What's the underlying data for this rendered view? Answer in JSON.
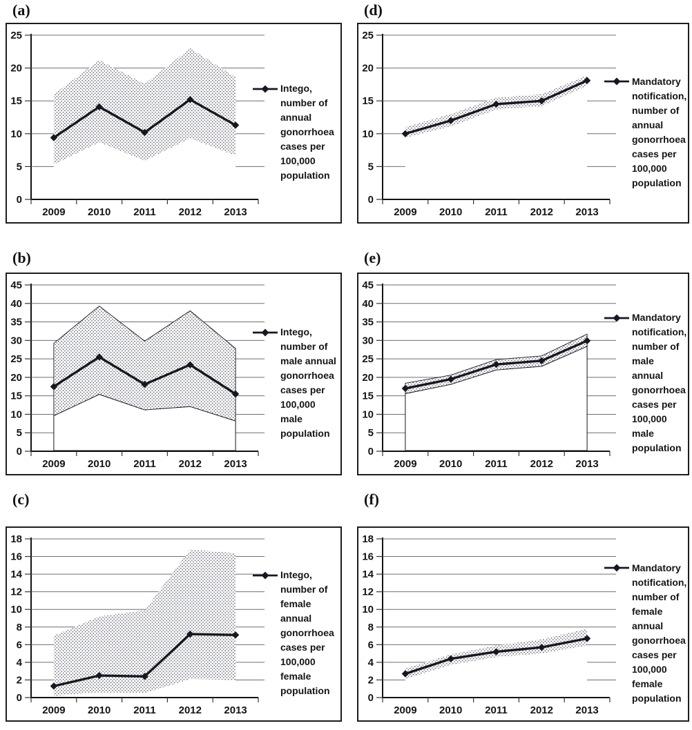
{
  "figure": {
    "description": "Six line charts (a-f) comparing Intego registration network vs Mandatory notification gonorrhoea rates, Belgium 2009-2013, with confidence bands",
    "accent_color": "#171721",
    "grid_color": "#6e6e6e"
  },
  "chart_data": [
    {
      "type": "line",
      "panel_label": "(a)",
      "categories": [
        "2009",
        "2010",
        "2011",
        "2012",
        "2013"
      ],
      "series": [
        {
          "name": "Intego, number of annual gonorrhoea cases per 100,000 population",
          "values": [
            9.4,
            14.1,
            10.2,
            15.2,
            11.3
          ]
        }
      ],
      "band": {
        "upper": [
          16.0,
          21.2,
          17.6,
          23.0,
          18.6
        ],
        "lower": [
          5.3,
          8.7,
          5.9,
          9.3,
          6.7
        ]
      },
      "ylim": [
        0,
        25
      ],
      "ytick": 5,
      "legend_lines": [
        "Intego,",
        "number of",
        "annual",
        "gonorrhoea",
        "cases per",
        "100,000",
        "population"
      ],
      "legend_position": "right",
      "grid": true,
      "band_outline": false,
      "area_outline": false
    },
    {
      "type": "line",
      "panel_label": "(b)",
      "categories": [
        "2009",
        "2010",
        "2011",
        "2012",
        "2013"
      ],
      "series": [
        {
          "name": "Intego, number of male annual gonorrhoea cases per 100,000 male population",
          "values": [
            17.5,
            25.5,
            18.1,
            23.4,
            15.5
          ]
        }
      ],
      "band": {
        "upper": [
          29.2,
          39.3,
          29.8,
          38.0,
          27.8
        ],
        "lower": [
          9.6,
          15.4,
          11.2,
          12.1,
          8.2
        ]
      },
      "ylim": [
        0,
        45
      ],
      "ytick": 5,
      "legend_lines": [
        "Intego,",
        "number of",
        "male annual",
        "gonorrhoea",
        "cases per",
        "100,000",
        "male",
        "population"
      ],
      "legend_position": "right",
      "grid": true,
      "band_outline": true,
      "area_outline": true
    },
    {
      "type": "line",
      "panel_label": "(c)",
      "categories": [
        "2009",
        "2010",
        "2011",
        "2012",
        "2013"
      ],
      "series": [
        {
          "name": "Intego, number of female annual gonorrhoea cases per 100,000 female population",
          "values": [
            1.3,
            2.5,
            2.4,
            7.2,
            7.1
          ]
        }
      ],
      "band": {
        "upper": [
          7.0,
          9.2,
          9.9,
          16.8,
          16.4
        ],
        "lower": [
          0.2,
          0.6,
          0.5,
          2.1,
          2.0
        ]
      },
      "ylim": [
        0,
        18
      ],
      "ytick": 2,
      "legend_lines": [
        "Intego,",
        "number of",
        "female",
        "annual",
        "gonorrhoea",
        "cases per",
        "100,000",
        "female",
        "population"
      ],
      "legend_position": "right",
      "grid": true,
      "band_outline": false,
      "area_outline": false
    },
    {
      "type": "line",
      "panel_label": "(d)",
      "categories": [
        "2009",
        "2010",
        "2011",
        "2012",
        "2013"
      ],
      "series": [
        {
          "name": "Mandatory notification, number of annual gonorrhoea cases per 100,000 population",
          "values": [
            10.0,
            12.0,
            14.5,
            15.0,
            18.1
          ]
        }
      ],
      "band": {
        "upper": [
          11.0,
          13.0,
          15.5,
          16.0,
          18.9
        ],
        "lower": [
          9.4,
          11.1,
          13.7,
          14.2,
          17.3
        ]
      },
      "ylim": [
        0,
        25
      ],
      "ytick": 5,
      "legend_lines": [
        "Mandatory",
        "notification,",
        "number of",
        "annual",
        "gonorrhoea",
        "cases per",
        "100,000",
        "population"
      ],
      "legend_position": "right",
      "grid": true,
      "band_outline": false,
      "area_outline": false
    },
    {
      "type": "line",
      "panel_label": "(e)",
      "categories": [
        "2009",
        "2010",
        "2011",
        "2012",
        "2013"
      ],
      "series": [
        {
          "name": "Mandatory notification, number of male annual gonorrhoea cases per 100,000 male population",
          "values": [
            17.0,
            19.5,
            23.5,
            24.5,
            29.9
          ]
        }
      ],
      "band": {
        "upper": [
          18.4,
          20.6,
          24.8,
          25.8,
          31.7
        ],
        "lower": [
          15.6,
          18.1,
          22.0,
          23.0,
          28.4
        ]
      },
      "ylim": [
        0,
        45
      ],
      "ytick": 5,
      "legend_lines": [
        "Mandatory",
        "notification,",
        "number of",
        "male",
        "annual",
        "gonorrhoea",
        "cases per",
        "100,000",
        "male",
        "population"
      ],
      "legend_position": "right",
      "grid": true,
      "band_outline": true,
      "area_outline": true
    },
    {
      "type": "line",
      "panel_label": "(f)",
      "categories": [
        "2009",
        "2010",
        "2011",
        "2012",
        "2013"
      ],
      "series": [
        {
          "name": "Mandatory notification, number of female annual gonorrhoea cases per 100,000 female population",
          "values": [
            2.7,
            4.4,
            5.2,
            5.7,
            6.7
          ]
        }
      ],
      "band": {
        "upper": [
          3.3,
          4.9,
          5.9,
          6.6,
          7.8
        ],
        "lower": [
          2.1,
          3.7,
          4.6,
          5.0,
          5.9
        ]
      },
      "ylim": [
        0,
        18
      ],
      "ytick": 2,
      "legend_lines": [
        "Mandatory",
        "notification,",
        "number of",
        "female",
        "annual",
        "gonorrhoea",
        "cases per",
        "100,000",
        "female",
        "population"
      ],
      "legend_position": "right",
      "grid": true,
      "band_outline": false,
      "area_outline": false
    }
  ]
}
